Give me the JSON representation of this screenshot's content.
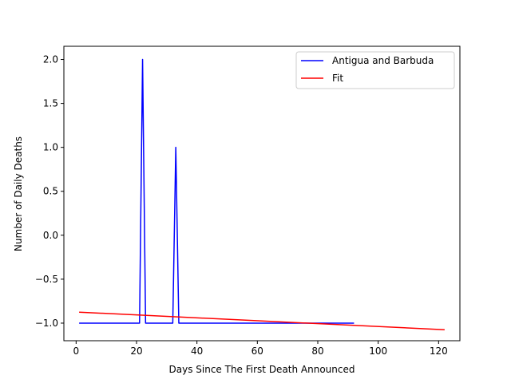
{
  "chart_data": {
    "type": "line",
    "xlabel": "Days Since The First Death Announced",
    "ylabel": "Number of Daily Deaths",
    "xlim": [
      -4.05,
      127.05
    ],
    "ylim": [
      -1.2,
      2.15
    ],
    "xticks": [
      0,
      20,
      40,
      60,
      80,
      100,
      120
    ],
    "yticks": [
      -1.0,
      -0.5,
      0.0,
      0.5,
      1.0,
      1.5,
      2.0
    ],
    "ytick_labels": [
      "−1.0",
      "−0.5",
      "0.0",
      "0.5",
      "1.0",
      "1.5",
      "2.0"
    ],
    "grid": false,
    "legend_position": "top-right",
    "series": [
      {
        "name": "Antigua and Barbuda",
        "color": "#0000ff",
        "x": [
          1,
          21,
          22,
          23,
          32,
          33,
          34,
          92
        ],
        "y": [
          -1,
          -1,
          2,
          -1,
          -1,
          1,
          -1,
          -1
        ]
      },
      {
        "name": "Fit",
        "color": "#ff0000",
        "x": [
          1,
          122
        ],
        "y": [
          -0.875,
          -1.075
        ]
      }
    ]
  }
}
